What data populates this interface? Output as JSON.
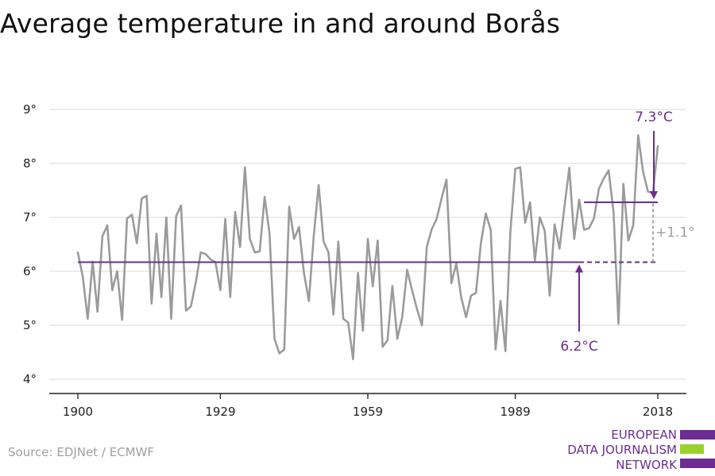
{
  "chart_data": {
    "type": "line",
    "title": "Average temperature in and around Borås",
    "xlabel": "",
    "ylabel": "",
    "xlim": [
      1895,
      2024
    ],
    "ylim": [
      3.85,
      9.35
    ],
    "x_ticks": [
      1900,
      1929,
      1959,
      1989,
      2018
    ],
    "y_ticks": [
      4,
      5,
      6,
      7,
      8,
      9
    ],
    "y_tick_suffix": "°",
    "grid": true,
    "series": [
      {
        "color": "#9b9b9b",
        "x": [
          1900,
          1901,
          1902,
          1903,
          1904,
          1905,
          1906,
          1907,
          1908,
          1909,
          1910,
          1911,
          1912,
          1913,
          1914,
          1915,
          1916,
          1917,
          1918,
          1919,
          1920,
          1921,
          1922,
          1923,
          1924,
          1925,
          1926,
          1927,
          1928,
          1929,
          1930,
          1931,
          1932,
          1933,
          1934,
          1935,
          1936,
          1937,
          1938,
          1939,
          1940,
          1941,
          1942,
          1943,
          1944,
          1945,
          1946,
          1947,
          1948,
          1949,
          1950,
          1951,
          1952,
          1953,
          1954,
          1955,
          1956,
          1957,
          1958,
          1959,
          1960,
          1961,
          1962,
          1963,
          1964,
          1965,
          1966,
          1967,
          1968,
          1969,
          1970,
          1971,
          1972,
          1973,
          1974,
          1975,
          1976,
          1977,
          1978,
          1979,
          1980,
          1981,
          1982,
          1983,
          1984,
          1985,
          1986,
          1987,
          1988,
          1989,
          1990,
          1991,
          1992,
          1993,
          1994,
          1995,
          1996,
          1997,
          1998,
          1999,
          2000,
          2001,
          2002,
          2003,
          2004,
          2005,
          2006,
          2007,
          2008,
          2009,
          2010,
          2011,
          2012,
          2013,
          2014,
          2015,
          2016,
          2017,
          2018
        ],
        "y": [
          6.35,
          5.9,
          5.12,
          6.18,
          5.25,
          6.65,
          6.85,
          5.65,
          6.0,
          5.1,
          6.98,
          7.05,
          6.52,
          7.35,
          7.4,
          5.4,
          6.7,
          5.52,
          7.0,
          5.12,
          7.02,
          7.22,
          5.27,
          5.35,
          5.8,
          6.35,
          6.32,
          6.22,
          6.17,
          5.65,
          6.97,
          5.52,
          7.1,
          6.45,
          7.93,
          6.6,
          6.35,
          6.37,
          7.38,
          6.7,
          4.75,
          4.48,
          4.55,
          7.2,
          6.6,
          6.82,
          5.97,
          5.45,
          6.65,
          7.6,
          6.55,
          6.35,
          5.2,
          6.55,
          5.12,
          5.05,
          4.37,
          5.97,
          4.9,
          6.6,
          5.72,
          6.57,
          4.6,
          4.72,
          5.73,
          4.75,
          5.15,
          6.03,
          5.65,
          5.3,
          5.0,
          6.45,
          6.78,
          6.97,
          7.35,
          7.7,
          5.78,
          6.15,
          5.52,
          5.15,
          5.55,
          5.6,
          6.52,
          7.07,
          6.77,
          4.55,
          5.45,
          4.52,
          6.72,
          7.9,
          7.93,
          6.9,
          7.28,
          6.2,
          7.0,
          6.75,
          5.55,
          6.87,
          6.42,
          7.2,
          7.92,
          6.6,
          7.33,
          6.77,
          6.8,
          6.98,
          7.53,
          7.72,
          7.87,
          7.1,
          5.03,
          7.62,
          6.57,
          6.85,
          8.52,
          7.85,
          7.48,
          7.45,
          8.32
        ]
      }
    ],
    "reference_lines": [
      {
        "x_start": 1900,
        "x_end": 2002,
        "y": 6.17,
        "style": "solid",
        "color": "#6c2c91"
      },
      {
        "x_start": 2002,
        "x_end": 2018,
        "y": 6.17,
        "style": "dashed",
        "color": "#6c2c91"
      },
      {
        "x_start": 2003,
        "x_end": 2018,
        "y": 7.28,
        "style": "solid",
        "color": "#6c2c91"
      }
    ],
    "annotations": [
      {
        "text": "6.2°C",
        "x": 2002,
        "y": 6.17,
        "color": "#6c2c91"
      },
      {
        "text": "7.3°C",
        "x": 2018,
        "y": 7.28,
        "color": "#6c2c91"
      },
      {
        "text": "+1.1°",
        "x": 2018,
        "y_from": 6.17,
        "y_to": 7.28,
        "color": "#a0a0a0"
      }
    ]
  },
  "source": "Source: EDJNet / ECMWF",
  "logo": {
    "lines": [
      "EUROPEAN",
      "DATA JOURNALISM",
      "NETWORK"
    ],
    "colors": [
      "#6c2c91",
      "#9bd12d",
      "#6c2c91"
    ]
  }
}
